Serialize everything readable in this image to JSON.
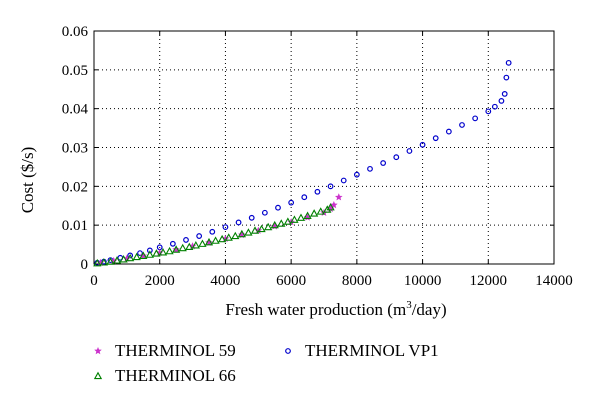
{
  "chart_data": {
    "type": "scatter",
    "xlabel_main": "Fresh water production (m",
    "xlabel_sup": "3",
    "xlabel_tail": "/day)",
    "ylabel": "Cost ($/s)",
    "xlim": [
      0,
      14000
    ],
    "ylim": [
      0,
      0.06
    ],
    "x_ticks": [
      "0",
      "2000",
      "4000",
      "6000",
      "8000",
      "10000",
      "12000",
      "14000"
    ],
    "y_ticks": [
      "0",
      "0.01",
      "0.02",
      "0.03",
      "0.04",
      "0.05",
      "0.06"
    ],
    "x_tick_values": [
      0,
      2000,
      4000,
      6000,
      8000,
      10000,
      12000,
      14000
    ],
    "y_tick_values": [
      0,
      0.01,
      0.02,
      0.03,
      0.04,
      0.05,
      0.06
    ],
    "grid": true,
    "legend_placement": "bottom",
    "series": [
      {
        "name": "THERMINOL 59",
        "marker": "star",
        "color": "#cc33cc",
        "points": [
          [
            200,
            0.0003
          ],
          [
            600,
            0.0008
          ],
          [
            1000,
            0.0014
          ],
          [
            1500,
            0.0021
          ],
          [
            2000,
            0.0029
          ],
          [
            2500,
            0.0037
          ],
          [
            3000,
            0.0046
          ],
          [
            3500,
            0.0055
          ],
          [
            4000,
            0.0065
          ],
          [
            4500,
            0.0075
          ],
          [
            5000,
            0.0086
          ],
          [
            5500,
            0.0097
          ],
          [
            6000,
            0.0108
          ],
          [
            6500,
            0.012
          ],
          [
            7000,
            0.0132
          ],
          [
            7200,
            0.0142
          ],
          [
            7300,
            0.0152
          ],
          [
            7450,
            0.0172
          ]
        ]
      },
      {
        "name": "THERMINOL 66",
        "marker": "triangle",
        "color": "#008000",
        "points": [
          [
            100,
            0.0002
          ],
          [
            300,
            0.0004
          ],
          [
            500,
            0.0006
          ],
          [
            700,
            0.0009
          ],
          [
            900,
            0.0012
          ],
          [
            1100,
            0.0015
          ],
          [
            1300,
            0.0018
          ],
          [
            1500,
            0.0021
          ],
          [
            1700,
            0.0024
          ],
          [
            1900,
            0.0027
          ],
          [
            2100,
            0.003
          ],
          [
            2300,
            0.0033
          ],
          [
            2500,
            0.0037
          ],
          [
            2700,
            0.0041
          ],
          [
            2900,
            0.0044
          ],
          [
            3100,
            0.0048
          ],
          [
            3300,
            0.0052
          ],
          [
            3500,
            0.0056
          ],
          [
            3700,
            0.006
          ],
          [
            3900,
            0.0064
          ],
          [
            4100,
            0.0068
          ],
          [
            4300,
            0.0072
          ],
          [
            4500,
            0.0077
          ],
          [
            4700,
            0.0081
          ],
          [
            4900,
            0.0086
          ],
          [
            5100,
            0.009
          ],
          [
            5300,
            0.0095
          ],
          [
            5500,
            0.01
          ],
          [
            5700,
            0.0104
          ],
          [
            5900,
            0.0109
          ],
          [
            6100,
            0.0114
          ],
          [
            6300,
            0.0119
          ],
          [
            6500,
            0.0124
          ],
          [
            6700,
            0.013
          ],
          [
            6900,
            0.0135
          ],
          [
            7100,
            0.014
          ],
          [
            7200,
            0.0146
          ]
        ]
      },
      {
        "name": "THERMINOL VP1",
        "marker": "circle",
        "color": "#0000cc",
        "points": [
          [
            100,
            0.0003
          ],
          [
            300,
            0.0006
          ],
          [
            500,
            0.001
          ],
          [
            800,
            0.0016
          ],
          [
            1100,
            0.0022
          ],
          [
            1400,
            0.0028
          ],
          [
            1700,
            0.0035
          ],
          [
            2000,
            0.0043
          ],
          [
            2400,
            0.0052
          ],
          [
            2800,
            0.0062
          ],
          [
            3200,
            0.0072
          ],
          [
            3600,
            0.0083
          ],
          [
            4000,
            0.0095
          ],
          [
            4400,
            0.0107
          ],
          [
            4800,
            0.0119
          ],
          [
            5200,
            0.0132
          ],
          [
            5600,
            0.0145
          ],
          [
            6000,
            0.0158
          ],
          [
            6400,
            0.0172
          ],
          [
            6800,
            0.0186
          ],
          [
            7200,
            0.02
          ],
          [
            7600,
            0.0215
          ],
          [
            8000,
            0.023
          ],
          [
            8400,
            0.0245
          ],
          [
            8800,
            0.026
          ],
          [
            9200,
            0.0275
          ],
          [
            9600,
            0.0291
          ],
          [
            10000,
            0.0307
          ],
          [
            10400,
            0.0324
          ],
          [
            10800,
            0.0341
          ],
          [
            11200,
            0.0358
          ],
          [
            11600,
            0.0375
          ],
          [
            12000,
            0.0393
          ],
          [
            12200,
            0.0405
          ],
          [
            12400,
            0.042
          ],
          [
            12500,
            0.0438
          ],
          [
            12550,
            0.048
          ],
          [
            12620,
            0.0518
          ]
        ]
      }
    ]
  }
}
